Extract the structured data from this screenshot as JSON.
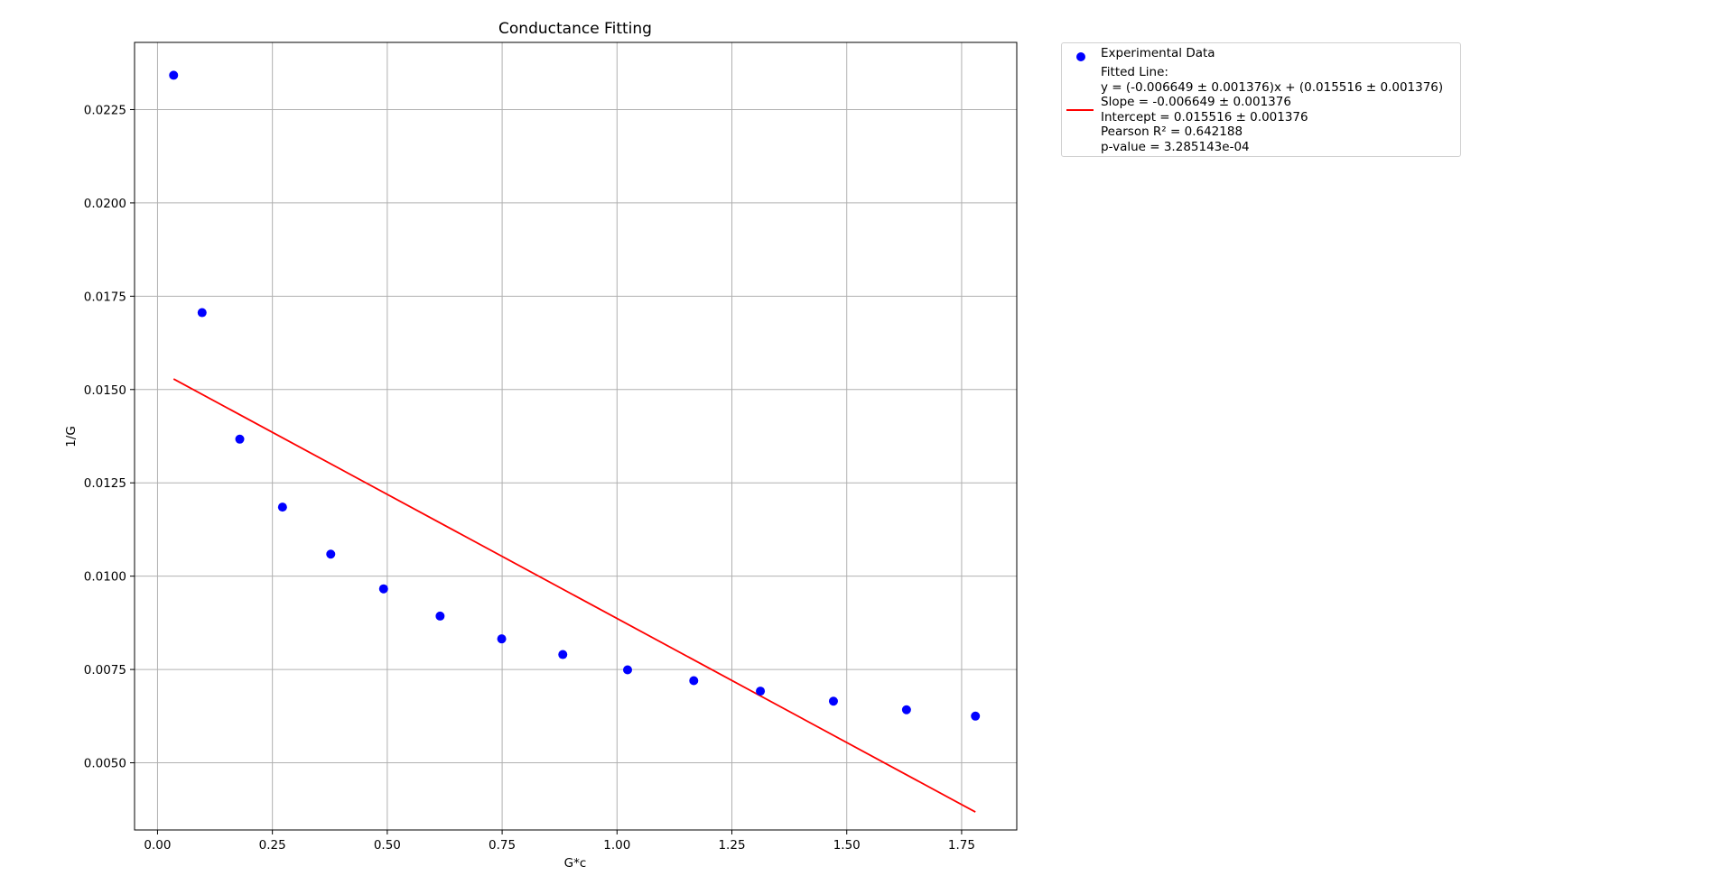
{
  "chart_data": {
    "type": "scatter",
    "title": "Conductance Fitting",
    "xlabel": "G*c",
    "ylabel": "1/G",
    "xlim": [
      -0.05,
      1.87
    ],
    "ylim": [
      0.0032,
      0.0243
    ],
    "xticks": [
      0.0,
      0.25,
      0.5,
      0.75,
      1.0,
      1.25,
      1.5,
      1.75
    ],
    "xtick_labels": [
      "0.00",
      "0.25",
      "0.50",
      "0.75",
      "1.00",
      "1.25",
      "1.50",
      "1.75"
    ],
    "yticks": [
      0.005,
      0.0075,
      0.01,
      0.0125,
      0.015,
      0.0175,
      0.02,
      0.0225
    ],
    "ytick_labels": [
      "0.0050",
      "0.0075",
      "0.0100",
      "0.0125",
      "0.0150",
      "0.0175",
      "0.0200",
      "0.0225"
    ],
    "grid": true,
    "legend_placement": "outside-upper-right",
    "series": [
      {
        "name": "Experimental Data",
        "kind": "scatter",
        "color": "#0000ff",
        "x": [
          0.035,
          0.097,
          0.179,
          0.272,
          0.377,
          0.492,
          0.615,
          0.749,
          0.882,
          1.023,
          1.167,
          1.312,
          1.471,
          1.63,
          1.78
        ],
        "y": [
          0.02342,
          0.01706,
          0.01367,
          0.01185,
          0.01059,
          0.00966,
          0.00893,
          0.00832,
          0.0079,
          0.00749,
          0.0072,
          0.00692,
          0.00665,
          0.00642,
          0.00625
        ]
      },
      {
        "name": "Fitted Line:\ny = (-0.006649 ± 0.001376)x + (0.015516 ± 0.001376)\nSlope = -0.006649 ± 0.001376\nIntercept = 0.015516 ± 0.001376\nPearson R² = 0.642188\np-value = 3.285143e-04",
        "kind": "line",
        "color": "#ff0000",
        "x": [
          0.035,
          1.78
        ],
        "y": [
          0.015283,
          0.003681
        ]
      }
    ]
  }
}
